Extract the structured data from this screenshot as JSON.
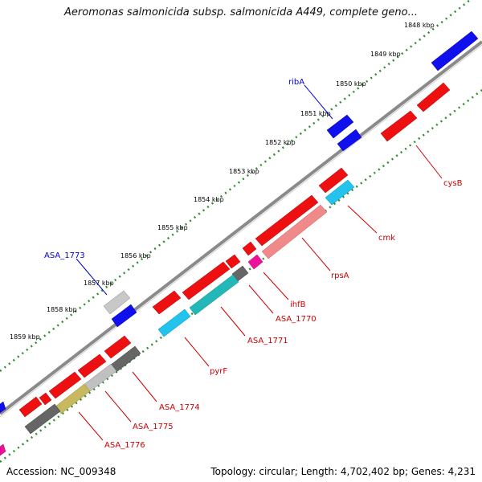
{
  "title": "Aeromonas salmonicida subsp. salmonicida A449, complete geno...",
  "footer": {
    "accession": "Accession: NC_009348",
    "summary": "Topology: circular; Length: 4,702,402 bp; Genes: 4,231"
  },
  "ruler_labels": [
    "1848 kbp",
    "1849 kbp",
    "1850 kbp",
    "1851 kbp",
    "1852 kbp",
    "1853 kbp",
    "1854 kbp",
    "1855 kbp",
    "1856 kbp",
    "1857 kbp",
    "1858 kbp",
    "1859 kbp"
  ],
  "gene_labels": {
    "ribA": "ribA",
    "ASA_1773": "ASA_1773",
    "cysB": "cysB",
    "cmk": "cmk",
    "rpsA": "rpsA",
    "ihfB": "ihfB",
    "ASA_1770": "ASA_1770",
    "ASA_1771": "ASA_1771",
    "pyrF": "pyrF",
    "ASA_1774": "ASA_1774",
    "ASA_1775": "ASA_1775",
    "ASA_1776": "ASA_1776"
  },
  "colors": {
    "backbone": "#808080",
    "ruler_dots": "#2e8b2e",
    "gene_blue": "#0000ee",
    "gene_red": "#ee0000",
    "gene_cyan": "#22c4ee",
    "gene_teal": "#22b8b8",
    "gene_pink": "#f08080",
    "gene_magenta": "#ee1199",
    "gene_gray": "#666666",
    "gene_lightgray": "#c0c0c0",
    "gene_olive": "#c8b860",
    "label_blue": "#0000cc",
    "label_red": "#cc0000"
  }
}
